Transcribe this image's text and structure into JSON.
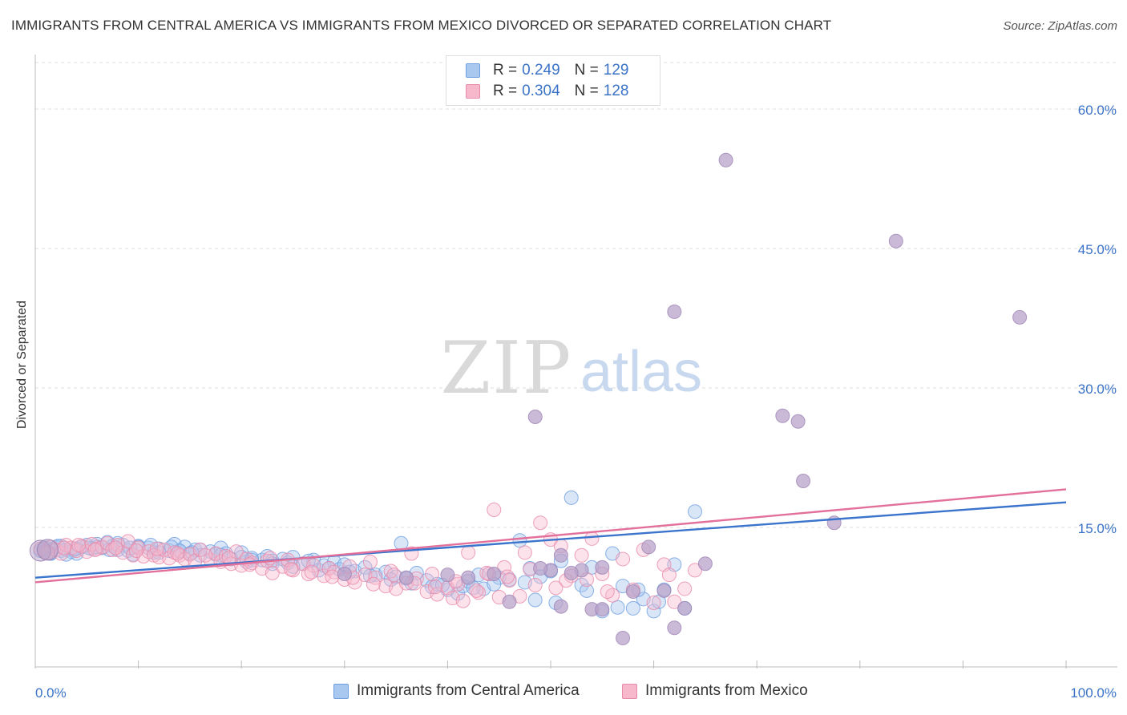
{
  "header": {
    "title": "IMMIGRANTS FROM CENTRAL AMERICA VS IMMIGRANTS FROM MEXICO DIVORCED OR SEPARATED CORRELATION CHART",
    "source": "Source: ZipAtlas.com"
  },
  "watermark": {
    "zip": "ZIP",
    "atlas": "atlas"
  },
  "legend": {
    "rows": [
      {
        "r_label": "R =",
        "r_value": "0.249",
        "n_label": "N =",
        "n_value": "129",
        "color": "#a8c8f0",
        "border": "#6f9fe0"
      },
      {
        "r_label": "R =",
        "r_value": "0.304",
        "n_label": "N =",
        "n_value": "128",
        "color": "#f7b8cc",
        "border": "#e98aa9"
      }
    ]
  },
  "bottom_legend": {
    "series1": "Immigrants from Central America",
    "series2": "Immigrants from Mexico"
  },
  "colors": {
    "blue_line": "#3a74cc",
    "pink_line": "#e2709a",
    "blue_fill": "#a8c8f0",
    "pink_fill": "#f7b8cc",
    "purple_fill": "#b9a3c9",
    "tick_text": "#3b73c7",
    "grid": "#dddddd"
  },
  "chart_data": {
    "type": "scatter",
    "title": "IMMIGRANTS FROM CENTRAL AMERICA VS IMMIGRANTS FROM MEXICO DIVORCED OR SEPARATED CORRELATION CHART",
    "xlabel": "",
    "ylabel": "Divorced or Separated",
    "xlim": [
      0,
      100
    ],
    "ylim": [
      0,
      65
    ],
    "x_tick_labels": [
      "0.0%",
      "100.0%"
    ],
    "y_ticks": [
      15,
      30,
      45,
      60
    ],
    "y_tick_labels": [
      "15.0%",
      "30.0%",
      "45.0%",
      "60.0%"
    ],
    "grid": true,
    "legend_position": "top-center",
    "series": [
      {
        "name": "Immigrants from Central America",
        "R": 0.249,
        "N": 129,
        "trend": {
          "x": [
            0,
            100
          ],
          "y": [
            9.6,
            17.7
          ]
        },
        "points": [
          [
            0.5,
            12.5
          ],
          [
            1,
            12.8
          ],
          [
            1.5,
            12.2
          ],
          [
            2,
            12.9
          ],
          [
            2.5,
            13.0
          ],
          [
            3,
            12.6
          ],
          [
            3.5,
            12.4
          ],
          [
            4,
            12.2
          ],
          [
            4.5,
            12.9
          ],
          [
            5,
            13.1
          ],
          [
            5.5,
            12.7
          ],
          [
            6,
            13.2
          ],
          [
            6.5,
            12.8
          ],
          [
            7,
            13.4
          ],
          [
            7.5,
            13.0
          ],
          [
            8,
            12.6
          ],
          [
            8.5,
            13.1
          ],
          [
            9,
            12.5
          ],
          [
            9.5,
            12.1
          ],
          [
            10,
            13.0
          ],
          [
            11,
            12.8
          ],
          [
            11.5,
            12.3
          ],
          [
            12,
            12.7
          ],
          [
            13,
            12.5
          ],
          [
            13.5,
            13.2
          ],
          [
            14,
            12.4
          ],
          [
            14.5,
            12.9
          ],
          [
            15,
            12.2
          ],
          [
            15.5,
            12.6
          ],
          [
            16,
            12.0
          ],
          [
            17,
            12.4
          ],
          [
            17.5,
            12.1
          ],
          [
            18,
            12.8
          ],
          [
            18.5,
            12.2
          ],
          [
            19,
            11.6
          ],
          [
            20,
            12.3
          ],
          [
            20.5,
            11.3
          ],
          [
            21,
            11.7
          ],
          [
            22,
            11.5
          ],
          [
            22.5,
            11.9
          ],
          [
            23,
            11.4
          ],
          [
            24,
            11.6
          ],
          [
            24.5,
            11.2
          ],
          [
            25,
            11.8
          ],
          [
            26,
            11.1
          ],
          [
            27,
            11.5
          ],
          [
            27.5,
            10.4
          ],
          [
            28,
            10.9
          ],
          [
            29,
            11.3
          ],
          [
            29.5,
            10.5
          ],
          [
            30,
            11.0
          ],
          [
            31,
            10.3
          ],
          [
            32,
            10.7
          ],
          [
            33,
            9.9
          ],
          [
            34,
            10.2
          ],
          [
            35,
            9.7
          ],
          [
            35.5,
            13.3
          ],
          [
            36,
            9.5
          ],
          [
            37,
            10.1
          ],
          [
            38,
            9.3
          ],
          [
            38.5,
            8.6
          ],
          [
            39,
            8.9
          ],
          [
            40,
            8.3
          ],
          [
            41,
            7.9
          ],
          [
            41.5,
            8.7
          ],
          [
            42,
            9.2
          ],
          [
            43,
            9.9
          ],
          [
            43.5,
            8.4
          ],
          [
            44,
            10.0
          ],
          [
            45,
            9.6
          ],
          [
            46,
            9.4
          ],
          [
            47,
            13.6
          ],
          [
            48,
            10.6
          ],
          [
            48.5,
            7.2
          ],
          [
            49,
            9.7
          ],
          [
            50,
            10.3
          ],
          [
            51,
            11.4
          ],
          [
            52,
            18.2
          ],
          [
            53,
            8.8
          ],
          [
            54,
            10.7
          ],
          [
            55,
            6.0
          ],
          [
            56,
            12.2
          ],
          [
            57,
            8.7
          ],
          [
            58,
            6.3
          ],
          [
            59,
            7.3
          ],
          [
            60,
            6.0
          ],
          [
            61,
            8.3
          ],
          [
            62,
            11.0
          ],
          [
            63,
            6.3
          ],
          [
            64,
            16.7
          ],
          [
            1.5,
            12.2
          ],
          [
            2.5,
            12.5
          ],
          [
            3,
            12.1
          ],
          [
            4,
            12.7
          ],
          [
            6,
            12.9
          ],
          [
            8,
            13.3
          ],
          [
            10,
            12.9
          ],
          [
            12,
            12.3
          ],
          [
            14,
            12.5
          ],
          [
            16,
            12.6
          ],
          [
            18,
            12.0
          ],
          [
            20,
            11.8
          ],
          [
            21,
            11.5
          ],
          [
            23,
            11.1
          ],
          [
            25,
            10.8
          ],
          [
            26.5,
            11.4
          ],
          [
            28.5,
            10.6
          ],
          [
            30.5,
            10.2
          ],
          [
            32.5,
            9.8
          ],
          [
            34.5,
            9.4
          ],
          [
            36.5,
            9.0
          ],
          [
            39.5,
            8.8
          ],
          [
            42.5,
            8.5
          ],
          [
            44.5,
            8.9
          ],
          [
            47.5,
            9.1
          ],
          [
            50.5,
            6.9
          ],
          [
            53.5,
            8.2
          ],
          [
            56.5,
            6.4
          ],
          [
            58.5,
            8.3
          ],
          [
            60.5,
            7.0
          ],
          [
            0.8,
            12.6
          ],
          [
            2.2,
            13.0
          ],
          [
            3.8,
            12.7
          ],
          [
            5.2,
            12.8
          ],
          [
            7.2,
            12.6
          ],
          [
            9.2,
            12.8
          ],
          [
            11.2,
            13.1
          ],
          [
            13.2,
            12.9
          ],
          [
            15.2,
            12.3
          ]
        ]
      },
      {
        "name": "Immigrants from Mexico",
        "R": 0.304,
        "N": 128,
        "trend": {
          "x": [
            0,
            100
          ],
          "y": [
            9.1,
            19.1
          ]
        },
        "points": [
          [
            0.5,
            12.7
          ],
          [
            1,
            12.4
          ],
          [
            1.5,
            12.9
          ],
          [
            2,
            12.6
          ],
          [
            2.5,
            12.2
          ],
          [
            3,
            13.1
          ],
          [
            3.5,
            12.8
          ],
          [
            4,
            12.5
          ],
          [
            4.5,
            13.0
          ],
          [
            5,
            12.4
          ],
          [
            5.5,
            13.2
          ],
          [
            6,
            12.7
          ],
          [
            6.5,
            12.9
          ],
          [
            7,
            13.3
          ],
          [
            7.5,
            12.6
          ],
          [
            8,
            13.1
          ],
          [
            8.5,
            12.3
          ],
          [
            9,
            13.5
          ],
          [
            9.5,
            12.0
          ],
          [
            10,
            12.8
          ],
          [
            10.5,
            11.9
          ],
          [
            11,
            12.4
          ],
          [
            11.5,
            12.0
          ],
          [
            12,
            11.8
          ],
          [
            12.5,
            12.6
          ],
          [
            13,
            11.7
          ],
          [
            13.5,
            12.3
          ],
          [
            14,
            12.0
          ],
          [
            14.5,
            11.6
          ],
          [
            15,
            12.1
          ],
          [
            15.5,
            11.4
          ],
          [
            16,
            12.6
          ],
          [
            17,
            11.5
          ],
          [
            17.5,
            12.2
          ],
          [
            18,
            11.3
          ],
          [
            18.5,
            11.9
          ],
          [
            19,
            11.1
          ],
          [
            19.5,
            12.4
          ],
          [
            20,
            10.9
          ],
          [
            20.5,
            11.6
          ],
          [
            21,
            11.2
          ],
          [
            22,
            10.6
          ],
          [
            22.5,
            11.4
          ],
          [
            23,
            10.1
          ],
          [
            24,
            10.8
          ],
          [
            24.5,
            11.5
          ],
          [
            25,
            10.4
          ],
          [
            26,
            11.1
          ],
          [
            26.5,
            10.0
          ],
          [
            27,
            10.9
          ],
          [
            28,
            9.8
          ],
          [
            28.5,
            10.6
          ],
          [
            29,
            10.2
          ],
          [
            30,
            9.4
          ],
          [
            30.5,
            10.8
          ],
          [
            31,
            9.1
          ],
          [
            32,
            9.9
          ],
          [
            32.5,
            11.3
          ],
          [
            33,
            9.6
          ],
          [
            34,
            8.7
          ],
          [
            34.5,
            10.3
          ],
          [
            35,
            8.4
          ],
          [
            36,
            9.0
          ],
          [
            36.5,
            12.2
          ],
          [
            37,
            9.5
          ],
          [
            38,
            8.1
          ],
          [
            38.5,
            10.0
          ],
          [
            39,
            7.8
          ],
          [
            40,
            8.5
          ],
          [
            40.5,
            7.4
          ],
          [
            41,
            8.9
          ],
          [
            41.5,
            7.1
          ],
          [
            42,
            12.3
          ],
          [
            43,
            8.0
          ],
          [
            44,
            10.0
          ],
          [
            44.5,
            16.9
          ],
          [
            45,
            7.5
          ],
          [
            45.5,
            10.7
          ],
          [
            46,
            9.3
          ],
          [
            47,
            7.6
          ],
          [
            47.5,
            12.3
          ],
          [
            48,
            10.5
          ],
          [
            49,
            15.5
          ],
          [
            50,
            13.7
          ],
          [
            50.5,
            8.5
          ],
          [
            51,
            13.0
          ],
          [
            52,
            9.8
          ],
          [
            53,
            12.0
          ],
          [
            54,
            13.8
          ],
          [
            55,
            10.0
          ],
          [
            56,
            7.7
          ],
          [
            57,
            11.6
          ],
          [
            58,
            8.3
          ],
          [
            59,
            12.6
          ],
          [
            60,
            6.9
          ],
          [
            61,
            11.0
          ],
          [
            61.5,
            9.9
          ],
          [
            62,
            7.0
          ],
          [
            63,
            8.4
          ],
          [
            64,
            10.4
          ],
          [
            1.2,
            12.3
          ],
          [
            2.8,
            12.8
          ],
          [
            4.2,
            13.1
          ],
          [
            5.8,
            12.6
          ],
          [
            7.8,
            12.8
          ],
          [
            9.8,
            12.5
          ],
          [
            11.8,
            12.7
          ],
          [
            13.8,
            12.2
          ],
          [
            16.5,
            12.0
          ],
          [
            18.8,
            11.7
          ],
          [
            20.8,
            11.0
          ],
          [
            22.8,
            11.7
          ],
          [
            24.8,
            10.5
          ],
          [
            26.8,
            10.2
          ],
          [
            28.8,
            9.7
          ],
          [
            30.8,
            9.6
          ],
          [
            32.8,
            8.9
          ],
          [
            34.8,
            9.9
          ],
          [
            36.8,
            9.0
          ],
          [
            38.8,
            8.6
          ],
          [
            40.8,
            9.2
          ],
          [
            42.8,
            8.2
          ],
          [
            43.8,
            10.1
          ],
          [
            45.8,
            9.7
          ],
          [
            48.5,
            8.8
          ],
          [
            51.5,
            9.3
          ],
          [
            53.5,
            9.4
          ],
          [
            55.5,
            8.1
          ]
        ]
      },
      {
        "name": "",
        "points": [
          [
            67,
            54.5
          ],
          [
            83.5,
            45.8
          ],
          [
            95.5,
            37.6
          ],
          [
            62,
            38.2
          ],
          [
            48.5,
            26.9
          ],
          [
            72.5,
            27.0
          ],
          [
            74,
            26.4
          ],
          [
            74.5,
            20.0
          ],
          [
            77.5,
            15.5
          ],
          [
            59.5,
            12.9
          ],
          [
            65,
            11.1
          ],
          [
            51,
            12.0
          ],
          [
            55,
            10.7
          ],
          [
            50,
            10.4
          ],
          [
            61,
            8.2
          ],
          [
            58,
            8.1
          ],
          [
            63,
            6.3
          ],
          [
            51,
            6.5
          ],
          [
            54,
            6.2
          ],
          [
            57,
            3.1
          ],
          [
            62,
            4.2
          ],
          [
            40,
            9.9
          ],
          [
            42,
            9.6
          ],
          [
            46,
            7.0
          ],
          [
            44.5,
            10.0
          ],
          [
            49,
            10.6
          ],
          [
            53,
            10.4
          ],
          [
            55,
            6.2
          ],
          [
            52,
            10.1
          ],
          [
            36,
            9.6
          ],
          [
            30,
            10.0
          ]
        ]
      }
    ]
  }
}
